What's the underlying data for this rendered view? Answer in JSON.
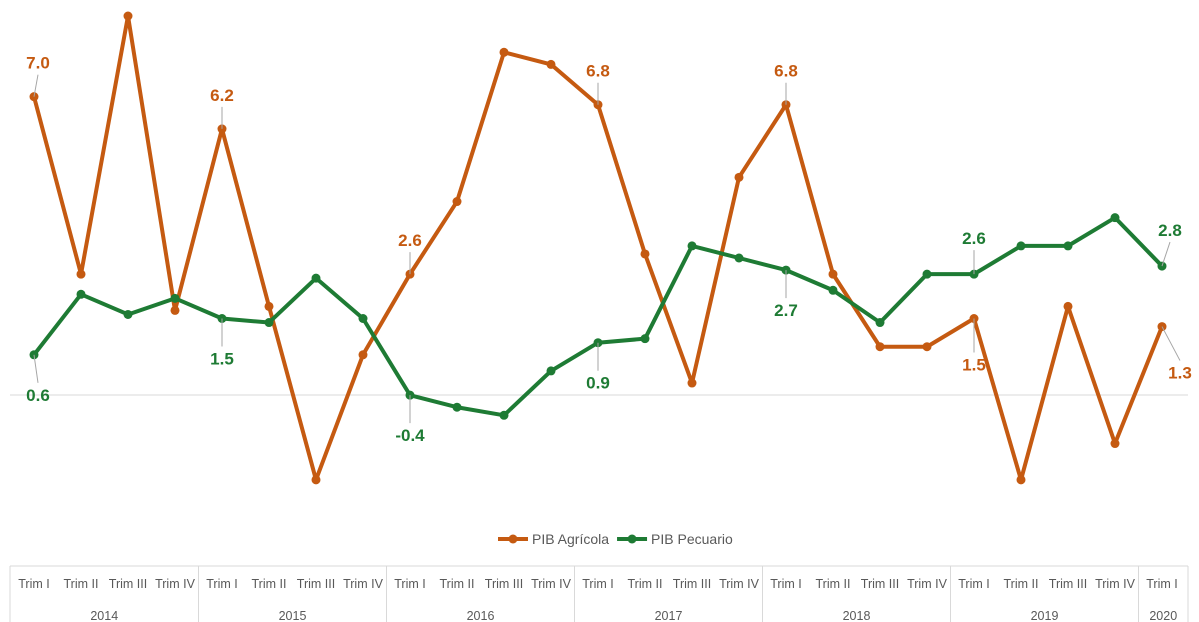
{
  "chart_data": {
    "type": "line",
    "x_quarters": [
      "Trim I",
      "Trim II",
      "Trim III",
      "Trim IV",
      "Trim I",
      "Trim II",
      "Trim III",
      "Trim IV",
      "Trim I",
      "Trim II",
      "Trim III",
      "Trim IV",
      "Trim I",
      "Trim II",
      "Trim III",
      "Trim IV",
      "Trim I",
      "Trim II",
      "Trim III",
      "Trim IV",
      "Trim I",
      "Trim II",
      "Trim III",
      "Trim IV",
      "Trim I"
    ],
    "x_years": [
      {
        "label": "2014",
        "count": 4
      },
      {
        "label": "2015",
        "count": 4
      },
      {
        "label": "2016",
        "count": 4
      },
      {
        "label": "2017",
        "count": 4
      },
      {
        "label": "2018",
        "count": 4
      },
      {
        "label": "2019",
        "count": 4
      },
      {
        "label": "2020",
        "count": 1
      }
    ],
    "ylim": [
      -3.0,
      9.0
    ],
    "grid": false,
    "zero_line": true,
    "legend_position": "bottom",
    "series": [
      {
        "name": "PIB Agrícola",
        "color": "#C55A11",
        "values": [
          7.0,
          2.6,
          9.0,
          1.7,
          6.2,
          1.8,
          -2.5,
          0.6,
          2.6,
          4.4,
          8.1,
          7.8,
          6.8,
          3.1,
          -0.1,
          5.0,
          6.8,
          2.6,
          0.8,
          0.8,
          1.5,
          -2.5,
          1.8,
          -1.6,
          1.3
        ],
        "labels": [
          "7.0",
          "",
          "",
          "",
          "6.2",
          "",
          "",
          "",
          "2.6",
          "",
          "",
          "",
          "6.8",
          "",
          "",
          "",
          "6.8",
          "",
          "",
          "",
          "1.5",
          "",
          "",
          "",
          "1.3"
        ]
      },
      {
        "name": "PIB Pecuario",
        "color": "#1E7B34",
        "values": [
          0.6,
          2.1,
          1.6,
          2.0,
          1.5,
          1.4,
          2.5,
          1.5,
          -0.4,
          -0.7,
          -0.9,
          0.2,
          0.9,
          1.0,
          3.3,
          3.0,
          2.7,
          2.2,
          1.4,
          2.6,
          2.6,
          3.3,
          3.3,
          4.0,
          2.8
        ],
        "labels": [
          "0.6",
          "",
          "",
          "",
          "1.5",
          "",
          "",
          "",
          "-0.4",
          "",
          "",
          "",
          "0.9",
          "",
          "",
          "",
          "2.7",
          "",
          "",
          "",
          "2.6",
          "",
          "",
          "",
          "2.8"
        ]
      }
    ]
  }
}
